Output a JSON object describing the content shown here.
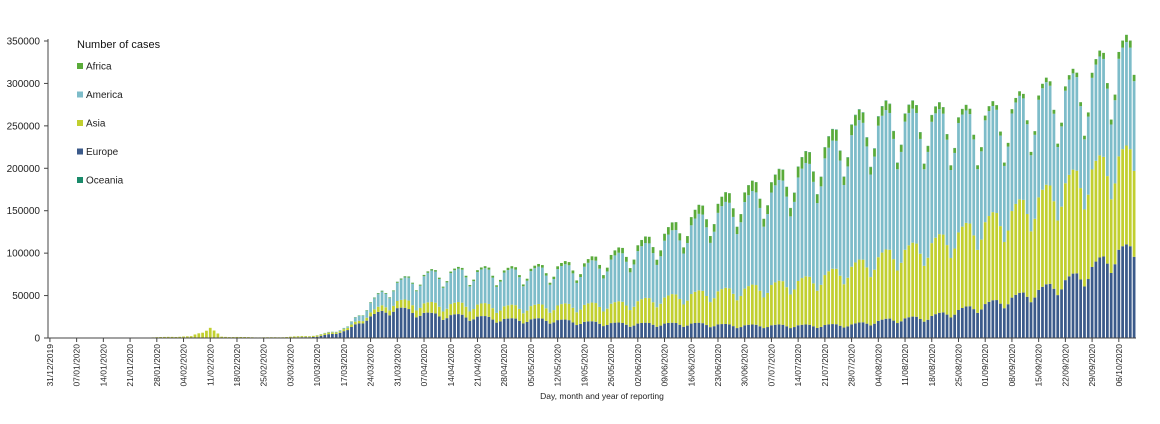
{
  "chart_data": {
    "type": "bar",
    "stacked": true,
    "title": "",
    "xlabel": "Day, month and year of reporting",
    "ylabel": "",
    "ylim": [
      0,
      350000
    ],
    "yticks": [
      0,
      50000,
      100000,
      150000,
      200000,
      250000,
      300000,
      350000
    ],
    "ytick_labels": [
      "0",
      "50000",
      "100000",
      "150000",
      "200000",
      "250000",
      "300000",
      "350000"
    ],
    "x_start": "2019-12-31",
    "x_end": "2020-10-10",
    "xtick_labels": [
      "31/12/2019",
      "07/01/2020",
      "14/01/2020",
      "21/01/2020",
      "28/01/2020",
      "04/02/2020",
      "11/02/2020",
      "18/02/2020",
      "25/02/2020",
      "03/03/2020",
      "10/03/2020",
      "17/03/2020",
      "24/03/2020",
      "31/03/2020",
      "07/04/2020",
      "14/04/2020",
      "21/04/2020",
      "28/04/2020",
      "05/05/2020",
      "12/05/2020",
      "19/05/2020",
      "26/05/2020",
      "02/06/2020",
      "09/06/2020",
      "16/06/2020",
      "23/06/2020",
      "30/06/2020",
      "07/07/2020",
      "14/07/2020",
      "21/07/2020",
      "28/07/2020",
      "04/08/2020",
      "11/08/2020",
      "18/08/2020",
      "25/08/2020",
      "01/09/2020",
      "08/09/2020",
      "15/09/2020",
      "22/09/2020",
      "29/09/2020",
      "06/10/2020"
    ],
    "legend_title": "Number of cases",
    "legend_position": "top-left",
    "grid": false,
    "series": [
      {
        "name": "Europe",
        "color": "#3b5a8a",
        "anchors": [
          [
            0,
            0
          ],
          [
            20,
            3
          ],
          [
            35,
            0
          ],
          [
            60,
            0
          ],
          [
            70,
            1500
          ],
          [
            78,
            9000
          ],
          [
            82,
            22000
          ],
          [
            90,
            36000
          ],
          [
            100,
            28000
          ],
          [
            110,
            26000
          ],
          [
            120,
            22000
          ],
          [
            130,
            22000
          ],
          [
            140,
            19000
          ],
          [
            150,
            17000
          ],
          [
            160,
            17000
          ],
          [
            170,
            17000
          ],
          [
            180,
            15000
          ],
          [
            190,
            15000
          ],
          [
            200,
            15000
          ],
          [
            210,
            16000
          ],
          [
            220,
            22000
          ],
          [
            230,
            25000
          ],
          [
            240,
            35000
          ],
          [
            250,
            45000
          ],
          [
            260,
            58000
          ],
          [
            270,
            75000
          ],
          [
            280,
            104000
          ]
        ]
      },
      {
        "name": "Asia",
        "color": "#c1cf2f",
        "anchors": [
          [
            0,
            0
          ],
          [
            20,
            60
          ],
          [
            30,
            1200
          ],
          [
            37,
            2000
          ],
          [
            42,
            12000
          ],
          [
            45,
            1500
          ],
          [
            55,
            800
          ],
          [
            60,
            900
          ],
          [
            70,
            1500
          ],
          [
            78,
            2500
          ],
          [
            82,
            3500
          ],
          [
            90,
            8000
          ],
          [
            100,
            12000
          ],
          [
            110,
            14000
          ],
          [
            120,
            15000
          ],
          [
            130,
            16000
          ],
          [
            140,
            20000
          ],
          [
            150,
            24000
          ],
          [
            160,
            30000
          ],
          [
            170,
            36000
          ],
          [
            180,
            42000
          ],
          [
            190,
            48000
          ],
          [
            200,
            55000
          ],
          [
            210,
            68000
          ],
          [
            220,
            78000
          ],
          [
            230,
            85000
          ],
          [
            240,
            93000
          ],
          [
            250,
            100000
          ],
          [
            260,
            110000
          ],
          [
            270,
            117000
          ],
          [
            280,
            110000
          ]
        ]
      },
      {
        "name": "America",
        "color": "#7dbcc9",
        "anchors": [
          [
            0,
            0
          ],
          [
            60,
            0
          ],
          [
            70,
            200
          ],
          [
            78,
            1200
          ],
          [
            82,
            8000
          ],
          [
            90,
            20000
          ],
          [
            100,
            35000
          ],
          [
            110,
            38000
          ],
          [
            120,
            40000
          ],
          [
            130,
            42000
          ],
          [
            140,
            45000
          ],
          [
            150,
            55000
          ],
          [
            160,
            65000
          ],
          [
            170,
            85000
          ],
          [
            180,
            100000
          ],
          [
            190,
            110000
          ],
          [
            200,
            130000
          ],
          [
            210,
            155000
          ],
          [
            220,
            155000
          ],
          [
            230,
            145000
          ],
          [
            240,
            125000
          ],
          [
            250,
            115000
          ],
          [
            260,
            115000
          ],
          [
            270,
            105000
          ],
          [
            280,
            115000
          ]
        ]
      },
      {
        "name": "Africa",
        "color": "#5aab3a",
        "anchors": [
          [
            0,
            0
          ],
          [
            70,
            0
          ],
          [
            80,
            400
          ],
          [
            90,
            1000
          ],
          [
            100,
            1500
          ],
          [
            110,
            2000
          ],
          [
            120,
            2500
          ],
          [
            130,
            3000
          ],
          [
            140,
            4000
          ],
          [
            150,
            6000
          ],
          [
            160,
            8000
          ],
          [
            170,
            10000
          ],
          [
            180,
            11000
          ],
          [
            190,
            12000
          ],
          [
            200,
            13000
          ],
          [
            210,
            12000
          ],
          [
            220,
            10000
          ],
          [
            230,
            8000
          ],
          [
            240,
            6000
          ],
          [
            250,
            5000
          ],
          [
            260,
            5000
          ],
          [
            270,
            5000
          ],
          [
            280,
            8000
          ]
        ]
      },
      {
        "name": "Oceania",
        "color": "#1a8a6a",
        "anchors": [
          [
            0,
            0
          ],
          [
            75,
            0
          ],
          [
            85,
            300
          ],
          [
            95,
            150
          ],
          [
            130,
            20
          ],
          [
            180,
            150
          ],
          [
            200,
            400
          ],
          [
            215,
            600
          ],
          [
            230,
            300
          ],
          [
            250,
            100
          ],
          [
            280,
            80
          ]
        ]
      }
    ]
  }
}
